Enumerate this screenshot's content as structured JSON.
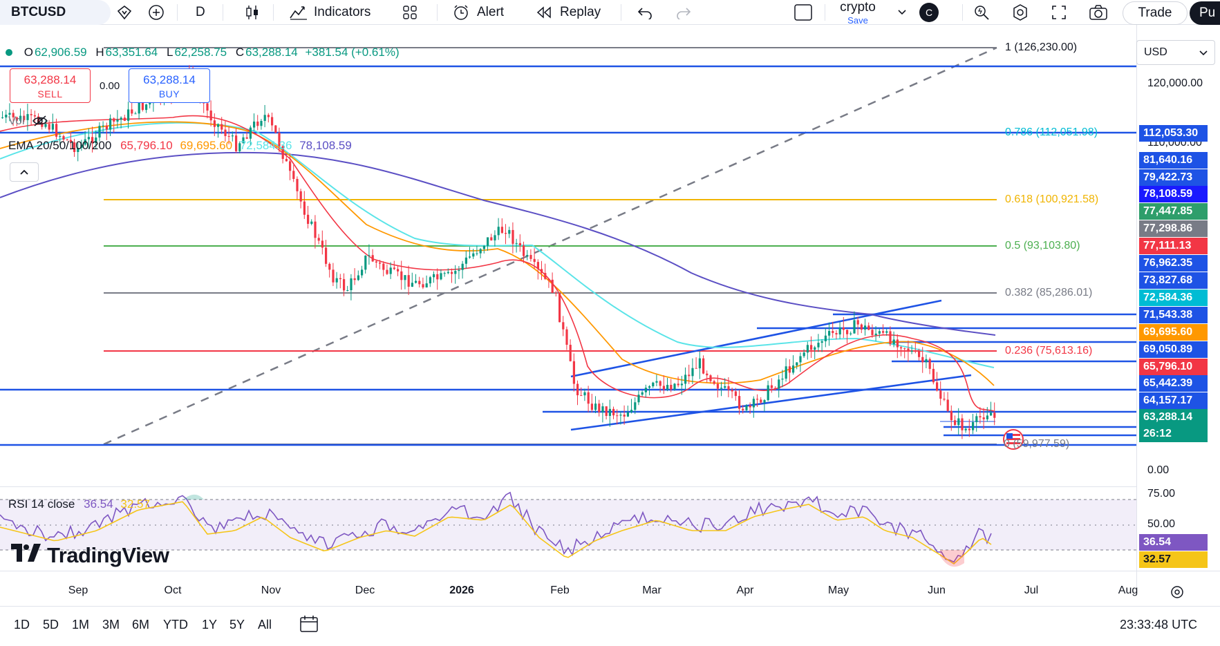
{
  "toolbar": {
    "symbol": "BTCUSD",
    "interval": "D",
    "indicators_label": "Indicators",
    "alert_label": "Alert",
    "replay_label": "Replay",
    "layout_name": "crypto",
    "layout_save": "Save",
    "layout_badge": "C",
    "trade_label": "Trade",
    "publish_label": "Pu"
  },
  "legend": {
    "ohlc": {
      "o_label": "O",
      "o_value": "62,906.59",
      "h_label": "H",
      "h_value": "63,351.64",
      "l_label": "L",
      "l_value": "62,258.75",
      "c_label": "C",
      "c_value": "63,288.14",
      "change": "+381.54 (+0.61%)"
    },
    "sell_price": "63,288.14",
    "sell_label": "SELL",
    "spread": "0.00",
    "buy_price": "63,288.14",
    "buy_label": "BUY",
    "vol_label": "Vol",
    "ema_label": "EMA 20/50/100/200",
    "ema_values": [
      "65,796.10",
      "69,695.60",
      "72,584.36",
      "78,108.59"
    ],
    "ema_colors": [
      "#f23645",
      "#ff9800",
      "#5ae4e8",
      "#5b4fc4"
    ],
    "collapse_icon": "chevron-up-icon"
  },
  "fib_labels": [
    {
      "text": "1 (126,230.00)",
      "color": "#787b86"
    },
    {
      "text": "0.786 (112,051.98)",
      "color": "#00bcd4"
    },
    {
      "text": "0.618 (100,921.58)",
      "color": "#f0b400"
    },
    {
      "text": "0.5 (93,103.80)",
      "color": "#4caf50"
    },
    {
      "text": "0.382 (85,286.01)",
      "color": "#787b86"
    },
    {
      "text": "0.236 (75,613.16)",
      "color": "#f23645"
    },
    {
      "text": "0 (59,977.59)",
      "color": "#787b86"
    }
  ],
  "currency": "USD",
  "price_axis": {
    "ticks": [
      "120,000.00",
      "110,000.00",
      "0.00"
    ],
    "tags": [
      {
        "text": "112,053.30",
        "bg": "#1e53e5"
      },
      {
        "text": "81,640.16",
        "bg": "#1e53e5"
      },
      {
        "text": "79,422.73",
        "bg": "#1e53e5"
      },
      {
        "text": "78,108.59",
        "bg": "#1a1aff"
      },
      {
        "text": "77,447.85",
        "bg": "#2e9e6b"
      },
      {
        "text": "77,298.86",
        "bg": "#787b86"
      },
      {
        "text": "77,111.13",
        "bg": "#f23645"
      },
      {
        "text": "76,962.35",
        "bg": "#1e53e5"
      },
      {
        "text": "73,827.68",
        "bg": "#1e53e5"
      },
      {
        "text": "72,584.36",
        "bg": "#00bcd4"
      },
      {
        "text": "71,543.38",
        "bg": "#1e53e5"
      },
      {
        "text": "69,695.60",
        "bg": "#ff9800"
      },
      {
        "text": "69,050.89",
        "bg": "#1e53e5"
      },
      {
        "text": "65,796.10",
        "bg": "#f23645"
      },
      {
        "text": "65,442.39",
        "bg": "#1e53e5"
      },
      {
        "text": "64,157.17",
        "bg": "#1e53e5"
      },
      {
        "text": "63,288.14",
        "bg": "#089981"
      },
      {
        "text": "26:12",
        "bg": "#089981"
      }
    ]
  },
  "rsi": {
    "label": "RSI 14 close",
    "value": "36.54",
    "ma_value": "32.57",
    "ticks": [
      "75.00",
      "50.00"
    ],
    "value_color": "#7e57c2",
    "ma_color": "#f5c518"
  },
  "time_axis": [
    {
      "label": "Sep",
      "bold": false
    },
    {
      "label": "Oct",
      "bold": false
    },
    {
      "label": "Nov",
      "bold": false
    },
    {
      "label": "Dec",
      "bold": false
    },
    {
      "label": "2026",
      "bold": true
    },
    {
      "label": "Feb",
      "bold": false
    },
    {
      "label": "Mar",
      "bold": false
    },
    {
      "label": "Apr",
      "bold": false
    },
    {
      "label": "May",
      "bold": false
    },
    {
      "label": "Jun",
      "bold": false
    },
    {
      "label": "Jul",
      "bold": false
    },
    {
      "label": "Aug",
      "bold": false
    }
  ],
  "ranges": [
    "1D",
    "5D",
    "1M",
    "3M",
    "6M",
    "YTD",
    "1Y",
    "5Y",
    "All"
  ],
  "clock": "23:33:48 UTC",
  "logo_text": "TradingView"
}
